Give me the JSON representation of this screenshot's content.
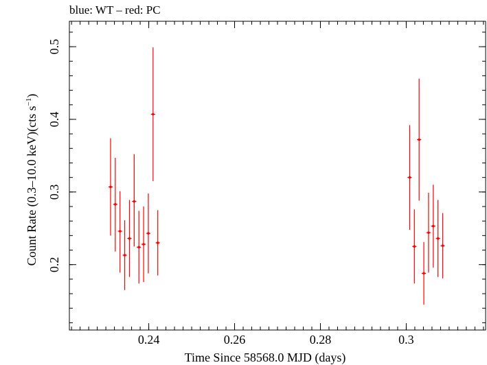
{
  "chart_data": {
    "type": "scatter",
    "title": "blue: WT – red: PC",
    "xlabel": "Time Since 58568.0 MJD (days)",
    "ylabel": "Count Rate (0.3–10.0 keV)(cts s",
    "ylabel_superscript": "−1",
    "ylabel_suffix": ")",
    "xlim": [
      0.2215,
      0.3185
    ],
    "ylim": [
      0.11,
      0.535
    ],
    "x_ticks": [
      {
        "value": 0.24,
        "label": "0.24"
      },
      {
        "value": 0.26,
        "label": "0.26"
      },
      {
        "value": 0.28,
        "label": "0.28"
      },
      {
        "value": 0.3,
        "label": "0.3"
      }
    ],
    "y_ticks": [
      {
        "value": 0.2,
        "label": "0.2"
      },
      {
        "value": 0.3,
        "label": "0.3"
      },
      {
        "value": 0.4,
        "label": "0.4"
      },
      {
        "value": 0.5,
        "label": "0.5"
      }
    ],
    "x_minor_step": 0.002,
    "y_minor_step": 0.02,
    "grid": false,
    "series": [
      {
        "color": "#ff0000",
        "points": [
          {
            "x": 0.2311,
            "y": 0.307,
            "xerr": 0.0005,
            "yerr_lo": 0.067,
            "yerr_hi": 0.067
          },
          {
            "x": 0.2322,
            "y": 0.283,
            "xerr": 0.0005,
            "yerr_lo": 0.065,
            "yerr_hi": 0.064
          },
          {
            "x": 0.2333,
            "y": 0.246,
            "xerr": 0.0005,
            "yerr_lo": 0.057,
            "yerr_hi": 0.055
          },
          {
            "x": 0.2344,
            "y": 0.213,
            "xerr": 0.0005,
            "yerr_lo": 0.048,
            "yerr_hi": 0.048
          },
          {
            "x": 0.2355,
            "y": 0.236,
            "xerr": 0.0005,
            "yerr_lo": 0.053,
            "yerr_hi": 0.053
          },
          {
            "x": 0.2366,
            "y": 0.287,
            "xerr": 0.0005,
            "yerr_lo": 0.062,
            "yerr_hi": 0.065
          },
          {
            "x": 0.2377,
            "y": 0.224,
            "xerr": 0.0005,
            "yerr_lo": 0.05,
            "yerr_hi": 0.05
          },
          {
            "x": 0.2388,
            "y": 0.228,
            "xerr": 0.0005,
            "yerr_lo": 0.052,
            "yerr_hi": 0.052
          },
          {
            "x": 0.2399,
            "y": 0.243,
            "xerr": 0.0005,
            "yerr_lo": 0.055,
            "yerr_hi": 0.055
          },
          {
            "x": 0.241,
            "y": 0.407,
            "xerr": 0.0005,
            "yerr_lo": 0.092,
            "yerr_hi": 0.092
          },
          {
            "x": 0.2421,
            "y": 0.23,
            "xerr": 0.0005,
            "yerr_lo": 0.045,
            "yerr_hi": 0.045
          },
          {
            "x": 0.3008,
            "y": 0.32,
            "xerr": 0.0005,
            "yerr_lo": 0.072,
            "yerr_hi": 0.072
          },
          {
            "x": 0.3019,
            "y": 0.225,
            "xerr": 0.0005,
            "yerr_lo": 0.051,
            "yerr_hi": 0.051
          },
          {
            "x": 0.303,
            "y": 0.372,
            "xerr": 0.0005,
            "yerr_lo": 0.084,
            "yerr_hi": 0.084
          },
          {
            "x": 0.3041,
            "y": 0.188,
            "xerr": 0.0005,
            "yerr_lo": 0.043,
            "yerr_hi": 0.043
          },
          {
            "x": 0.3052,
            "y": 0.244,
            "xerr": 0.0005,
            "yerr_lo": 0.055,
            "yerr_hi": 0.055
          },
          {
            "x": 0.3063,
            "y": 0.253,
            "xerr": 0.0005,
            "yerr_lo": 0.057,
            "yerr_hi": 0.057
          },
          {
            "x": 0.3074,
            "y": 0.236,
            "xerr": 0.0005,
            "yerr_lo": 0.053,
            "yerr_hi": 0.053
          },
          {
            "x": 0.3085,
            "y": 0.226,
            "xerr": 0.0005,
            "yerr_lo": 0.045,
            "yerr_hi": 0.045
          }
        ]
      }
    ]
  }
}
